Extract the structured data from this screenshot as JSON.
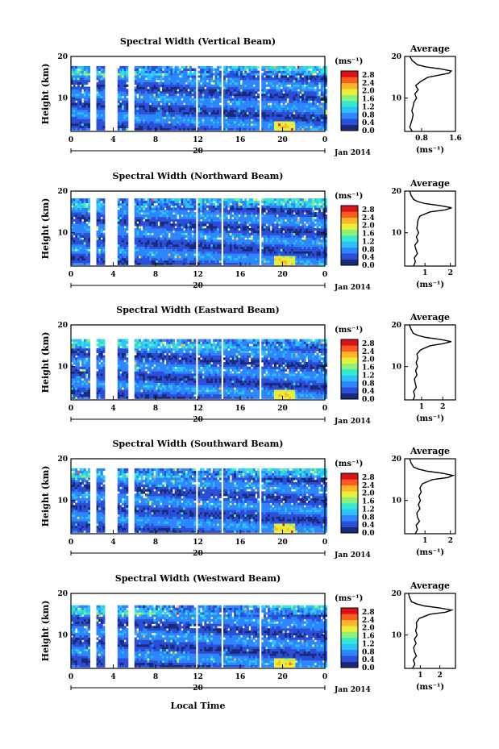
{
  "figure": {
    "xlabel": "Local Time",
    "ylabel": "Height (km)",
    "date_suffix": "Jan 2014",
    "day_label": "20",
    "cb_unit": "(ms⁻¹)",
    "avg_title": "Average",
    "avg_xlabel": "(ms⁻¹)",
    "colormap": [
      "#1a2a7a",
      "#2b4fd8",
      "#2e86ff",
      "#2cc1ff",
      "#35e8d0",
      "#8df27a",
      "#e6f03a",
      "#ffb52a",
      "#ff5a1f",
      "#d8141a"
    ]
  },
  "chart_data": [
    {
      "type": "heatmap",
      "title": "Spectral Width (Vertical Beam)",
      "x_ticks": [
        "0",
        "4",
        "8",
        "12",
        "16",
        "20",
        "0"
      ],
      "xlim": [
        0,
        24
      ],
      "y_ticks": [
        "20",
        "10"
      ],
      "ylim": [
        2,
        20
      ],
      "colorbar_ticks": [
        "2.8",
        "2.4",
        "2.0",
        "1.6",
        "1.2",
        "0.8",
        "0.4",
        "0.0"
      ],
      "colorbar_range": [
        0,
        3.0
      ],
      "data_gaps_hours": [
        [
          1.7,
          2.3
        ],
        [
          3.2,
          4.4
        ],
        [
          5.4,
          6.0
        ],
        [
          11.6,
          11.9
        ],
        [
          14.0,
          14.2
        ],
        [
          17.6,
          17.9
        ]
      ],
      "average_profile": {
        "xlim": [
          0.4,
          1.6
        ],
        "x_ticks": [
          "0.8",
          "1.6"
        ],
        "y_ticks": [
          "20",
          "10"
        ],
        "height_km": [
          2,
          3,
          4,
          5,
          6,
          7,
          8,
          9,
          10,
          11,
          12,
          13,
          14,
          15,
          15.5,
          16,
          16.5,
          17,
          17.5,
          18,
          19,
          20
        ],
        "width": [
          0.58,
          0.52,
          0.55,
          0.58,
          0.6,
          0.57,
          0.6,
          0.62,
          0.68,
          0.64,
          0.72,
          0.66,
          0.78,
          0.95,
          1.2,
          1.45,
          1.5,
          1.25,
          0.9,
          0.7,
          0.58,
          0.52
        ]
      }
    },
    {
      "type": "heatmap",
      "title": "Spectral Width (Northward Beam)",
      "x_ticks": [
        "0",
        "4",
        "8",
        "12",
        "16",
        "20",
        "0"
      ],
      "xlim": [
        0,
        24
      ],
      "y_ticks": [
        "20",
        "10"
      ],
      "ylim": [
        2,
        20
      ],
      "colorbar_ticks": [
        "2.8",
        "2.4",
        "2.0",
        "1.6",
        "1.2",
        "0.8",
        "0.4",
        "0.0"
      ],
      "colorbar_range": [
        0,
        3.0
      ],
      "data_gaps_hours": [
        [
          1.7,
          2.3
        ],
        [
          3.2,
          4.4
        ],
        [
          5.4,
          6.0
        ],
        [
          11.6,
          11.9
        ],
        [
          14.0,
          14.2
        ],
        [
          17.6,
          17.9
        ]
      ],
      "average_profile": {
        "xlim": [
          0.2,
          2.2
        ],
        "x_ticks": [
          "1",
          "2"
        ],
        "y_ticks": [
          "20",
          "10"
        ],
        "height_km": [
          2,
          3,
          4,
          5,
          6,
          7,
          8,
          9,
          10,
          11,
          12,
          13,
          14,
          15,
          15.5,
          16,
          16.5,
          17,
          17.5,
          18,
          19,
          20
        ],
        "width": [
          0.55,
          0.62,
          0.58,
          0.7,
          0.64,
          0.6,
          0.72,
          0.66,
          0.75,
          0.68,
          0.7,
          0.72,
          0.8,
          1.2,
          1.8,
          2.05,
          1.6,
          1.0,
          0.7,
          0.55,
          0.45,
          0.4
        ]
      }
    },
    {
      "type": "heatmap",
      "title": "Spectral Width (Eastward Beam)",
      "x_ticks": [
        "0",
        "4",
        "8",
        "12",
        "16",
        "20",
        "0"
      ],
      "xlim": [
        0,
        24
      ],
      "y_ticks": [
        "20",
        "10"
      ],
      "ylim": [
        2,
        20
      ],
      "colorbar_ticks": [
        "2.8",
        "2.4",
        "2.0",
        "1.6",
        "1.2",
        "0.8",
        "0.4",
        "0.0"
      ],
      "colorbar_range": [
        0,
        3.0
      ],
      "data_gaps_hours": [
        [
          1.7,
          2.3
        ],
        [
          3.2,
          4.4
        ],
        [
          5.4,
          6.0
        ],
        [
          11.6,
          11.9
        ],
        [
          14.0,
          14.2
        ],
        [
          17.6,
          17.9
        ]
      ],
      "average_profile": {
        "xlim": [
          0.2,
          2.6
        ],
        "x_ticks": [
          "1",
          "2"
        ],
        "y_ticks": [
          "20",
          "10"
        ],
        "height_km": [
          2,
          3,
          4,
          5,
          6,
          7,
          8,
          9,
          10,
          11,
          12,
          13,
          14,
          15,
          15.5,
          16,
          16.5,
          17,
          17.5,
          18,
          19,
          20
        ],
        "width": [
          0.6,
          0.68,
          0.62,
          0.75,
          0.7,
          0.66,
          0.78,
          0.72,
          0.8,
          0.74,
          0.82,
          0.78,
          0.95,
          1.4,
          2.0,
          2.4,
          1.9,
          1.2,
          0.8,
          0.6,
          0.5,
          0.42
        ]
      }
    },
    {
      "type": "heatmap",
      "title": "Spectral Width (Southward Beam)",
      "x_ticks": [
        "0",
        "4",
        "8",
        "12",
        "16",
        "20",
        "0"
      ],
      "xlim": [
        0,
        24
      ],
      "y_ticks": [
        "20",
        "10"
      ],
      "ylim": [
        2,
        20
      ],
      "colorbar_ticks": [
        "2.8",
        "2.4",
        "2.0",
        "1.6",
        "1.2",
        "0.8",
        "0.4",
        "0.0"
      ],
      "colorbar_range": [
        0,
        3.0
      ],
      "data_gaps_hours": [
        [
          1.7,
          2.3
        ],
        [
          3.2,
          4.4
        ],
        [
          5.4,
          6.0
        ],
        [
          11.6,
          11.9
        ],
        [
          14.0,
          14.2
        ],
        [
          17.6,
          17.9
        ]
      ],
      "average_profile": {
        "xlim": [
          0.2,
          2.2
        ],
        "x_ticks": [
          "1",
          "2"
        ],
        "y_ticks": [
          "20",
          "10"
        ],
        "height_km": [
          2,
          3,
          4,
          5,
          6,
          7,
          8,
          9,
          10,
          11,
          12,
          13,
          14,
          15,
          15.5,
          16,
          16.5,
          17,
          17.5,
          18,
          19,
          20
        ],
        "width": [
          0.62,
          0.7,
          0.65,
          0.78,
          0.7,
          0.68,
          0.8,
          0.74,
          0.82,
          0.76,
          0.85,
          0.8,
          0.9,
          1.3,
          1.9,
          2.1,
          1.7,
          1.1,
          0.75,
          0.55,
          0.45,
          0.4
        ]
      }
    },
    {
      "type": "heatmap",
      "title": "Spectral Width (Westward Beam)",
      "x_ticks": [
        "0",
        "4",
        "8",
        "12",
        "16",
        "20",
        "0"
      ],
      "xlim": [
        0,
        24
      ],
      "y_ticks": [
        "20",
        "10"
      ],
      "ylim": [
        2,
        20
      ],
      "colorbar_ticks": [
        "2.8",
        "2.4",
        "2.0",
        "1.6",
        "1.2",
        "0.8",
        "0.4",
        "0.0"
      ],
      "colorbar_range": [
        0,
        3.0
      ],
      "data_gaps_hours": [
        [
          1.7,
          2.3
        ],
        [
          3.2,
          4.4
        ],
        [
          5.4,
          6.0
        ],
        [
          11.6,
          11.9
        ],
        [
          14.0,
          14.2
        ],
        [
          17.6,
          17.9
        ]
      ],
      "average_profile": {
        "xlim": [
          0.2,
          2.8
        ],
        "x_ticks": [
          "1",
          "2"
        ],
        "y_ticks": [
          "20",
          "10"
        ],
        "height_km": [
          2,
          3,
          4,
          5,
          6,
          7,
          8,
          9,
          10,
          11,
          12,
          13,
          14,
          15,
          15.5,
          16,
          16.5,
          17,
          17.5,
          18,
          19,
          20
        ],
        "width": [
          0.6,
          0.72,
          0.64,
          0.8,
          0.7,
          0.66,
          0.78,
          0.7,
          0.84,
          0.76,
          0.82,
          0.8,
          0.95,
          1.5,
          2.3,
          2.6,
          2.0,
          1.2,
          0.8,
          0.55,
          0.45,
          0.4
        ]
      }
    }
  ]
}
